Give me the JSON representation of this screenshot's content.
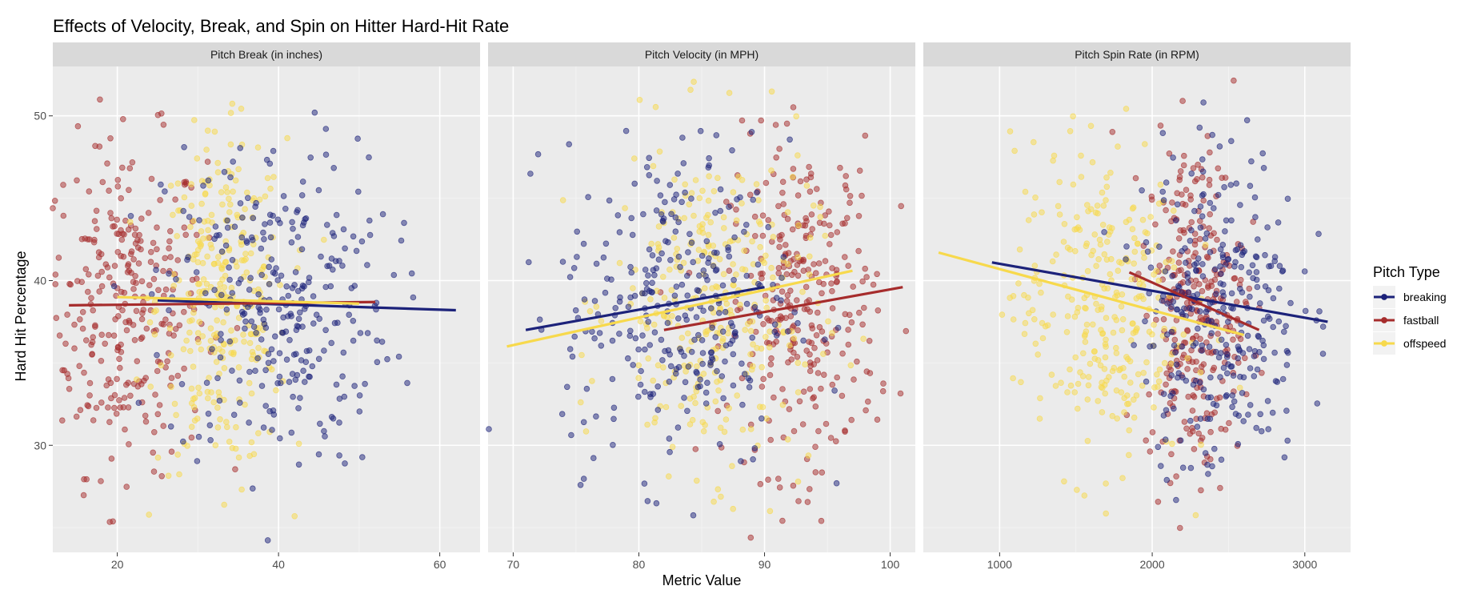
{
  "chart_data": {
    "type": "scatter",
    "title": "Effects of Velocity, Break, and Spin on Hitter Hard-Hit Rate",
    "xlabel": "Metric Value",
    "ylabel": "Hard Hit Percentage",
    "ylim": [
      23.5,
      53
    ],
    "yticks": [
      30,
      40,
      50
    ],
    "legend": {
      "title": "Pitch Type",
      "position": "right",
      "entries": [
        "breaking",
        "fastball",
        "offspeed"
      ]
    },
    "colors": {
      "breaking": "#1c227a",
      "fastball": "#a62c2c",
      "offspeed": "#f7d94c"
    },
    "panel_bg": "#ebebeb",
    "strip_bg": "#d9d9d9",
    "panels": [
      {
        "strip": "Pitch Break (in inches)",
        "xlim": [
          12,
          65
        ],
        "xticks": [
          20,
          40,
          60
        ],
        "fit_lines": [
          {
            "series": "breaking",
            "x": [
              25,
              62
            ],
            "y": [
              38.8,
              38.2
            ]
          },
          {
            "series": "fastball",
            "x": [
              14,
              52
            ],
            "y": [
              38.5,
              38.7
            ]
          },
          {
            "series": "offspeed",
            "x": [
              20,
              50
            ],
            "y": [
              39.0,
              38.6
            ]
          }
        ]
      },
      {
        "strip": "Pitch Velocity (in MPH)",
        "xlim": [
          68,
          102
        ],
        "xticks": [
          70,
          80,
          90,
          100
        ],
        "fit_lines": [
          {
            "series": "breaking",
            "x": [
              71,
              90
            ],
            "y": [
              37.0,
              39.6
            ]
          },
          {
            "series": "fastball",
            "x": [
              82,
              101
            ],
            "y": [
              37.0,
              39.6
            ]
          },
          {
            "series": "offspeed",
            "x": [
              69.5,
              97
            ],
            "y": [
              36.0,
              40.6
            ]
          }
        ]
      },
      {
        "strip": "Pitch Spin Rate (in RPM)",
        "xlim": [
          500,
          3300
        ],
        "xticks": [
          1000,
          2000,
          3000
        ],
        "fit_lines": [
          {
            "series": "breaking",
            "x": [
              950,
              3150
            ],
            "y": [
              41.1,
              37.5
            ]
          },
          {
            "series": "fastball",
            "x": [
              1850,
              2700
            ],
            "y": [
              40.5,
              37.0
            ]
          },
          {
            "series": "offspeed",
            "x": [
              600,
              2600
            ],
            "y": [
              41.7,
              36.7
            ]
          }
        ]
      }
    ],
    "points": {
      "count_per_series": 300,
      "break_distribution": {
        "breaking": {
          "x_mean": 40,
          "x_sd": 7
        },
        "fastball": {
          "x_mean": 21,
          "x_sd": 5
        },
        "offspeed": {
          "x_mean": 33,
          "x_sd": 4
        }
      },
      "velocity_distribution": {
        "breaking": {
          "x_mean": 83,
          "x_sd": 4.5
        },
        "fastball": {
          "x_mean": 93,
          "x_sd": 3
        },
        "offspeed": {
          "x_mean": 86,
          "x_sd": 4
        }
      },
      "spin_distribution": {
        "breaking": {
          "x_mean": 2450,
          "x_sd": 260
        },
        "fastball": {
          "x_mean": 2280,
          "x_sd": 160
        },
        "offspeed": {
          "x_mean": 1650,
          "x_sd": 280
        }
      },
      "y_mean": 38.5,
      "y_sd": 5
    }
  }
}
